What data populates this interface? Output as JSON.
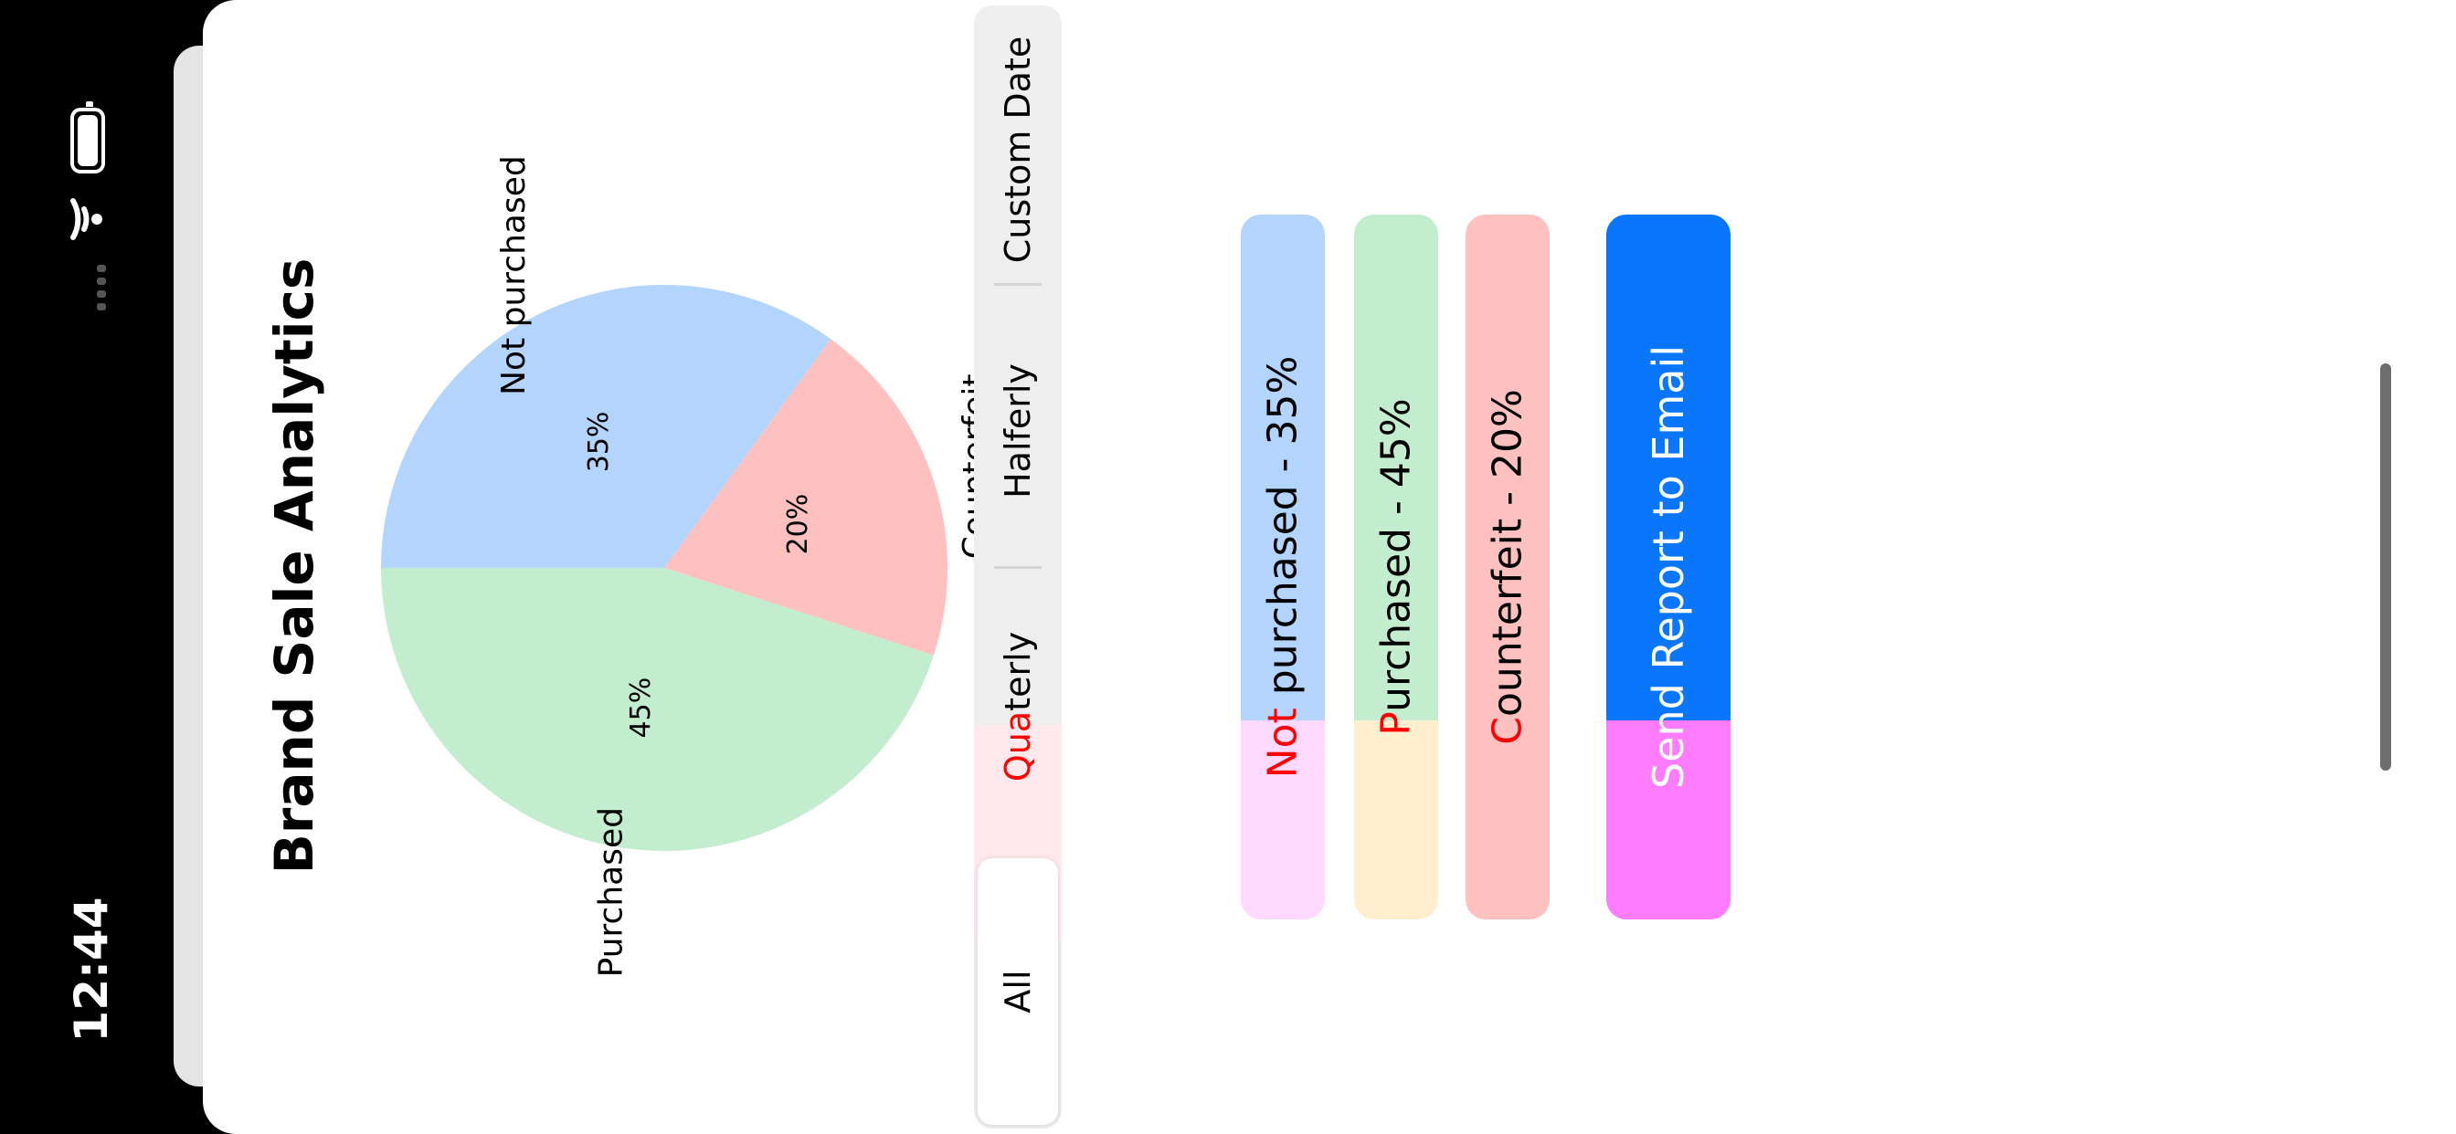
{
  "status_bar": {
    "time": "12:44"
  },
  "header": {
    "title": "Brand Sale Analytics"
  },
  "chart_data": {
    "type": "pie",
    "title": "Brand Sale Analytics",
    "slices": [
      {
        "label": "Not purchased",
        "value": 35,
        "value_label": "35%",
        "color": "#b3d5fd"
      },
      {
        "label": "Counterfeit",
        "value": 20,
        "value_label": "20%",
        "color": "#ffc1c0"
      },
      {
        "label": "Purchased",
        "value": 45,
        "value_label": "45%",
        "color": "#c2eecf"
      }
    ]
  },
  "filter": {
    "options": [
      {
        "label": "All",
        "selected": true
      },
      {
        "label": "Quaterly",
        "selected": false
      },
      {
        "label": "Halferly",
        "selected": false
      },
      {
        "label": "Custom Date",
        "selected": false
      }
    ]
  },
  "legend": {
    "items": [
      {
        "first": "Not",
        "rest": " purchased - 35%",
        "top_color": "#b3d5fd",
        "bottom_color": "#ffd9ff"
      },
      {
        "first": "P",
        "rest": "urchased - 45%",
        "top_color": "#c2eecf",
        "bottom_color": "#ffefce"
      },
      {
        "first": "C",
        "rest": "ounterfeit - 20%",
        "top_color": "#ffc1c0",
        "bottom_color": "#ffc1c0"
      }
    ]
  },
  "actions": {
    "send_report_label": "Send Report to Email",
    "send_colors": {
      "top": "#0a76fc",
      "bottom": "#ff7cfe"
    }
  }
}
